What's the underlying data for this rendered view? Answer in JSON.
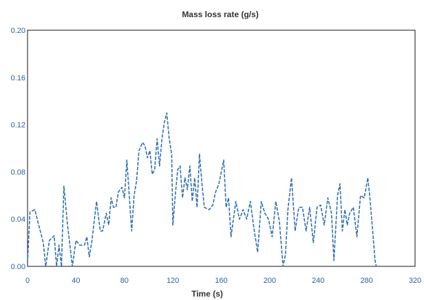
{
  "chart_data": {
    "type": "line",
    "title": "Mass loss rate (g/s)",
    "xlabel": "Time (s)",
    "ylabel": "",
    "xlim": [
      0,
      320
    ],
    "ylim": [
      0,
      0.2
    ],
    "x_ticks": [
      "0",
      "40",
      "80",
      "120",
      "160",
      "200",
      "240",
      "280",
      "320"
    ],
    "y_ticks": [
      "0.00",
      "0.04",
      "0.08",
      "0.12",
      "0.16",
      "0.20"
    ],
    "grid": false,
    "legend": "none",
    "series": [
      {
        "color": "#2e6fb0",
        "points": [
          [
            0,
            0.003
          ],
          [
            2,
            0.046
          ],
          [
            6,
            0.048
          ],
          [
            10,
            0.032
          ],
          [
            13,
            0.02
          ],
          [
            15,
            0.0
          ],
          [
            18,
            0.022
          ],
          [
            22,
            0.026
          ],
          [
            24,
            0.0
          ],
          [
            26,
            0.018
          ],
          [
            28,
            0.0
          ],
          [
            30,
            0.068
          ],
          [
            33,
            0.035
          ],
          [
            35,
            0.018
          ],
          [
            37,
            0.0
          ],
          [
            40,
            0.022
          ],
          [
            43,
            0.018
          ],
          [
            47,
            0.018
          ],
          [
            49,
            0.025
          ],
          [
            51,
            0.008
          ],
          [
            53,
            0.02
          ],
          [
            55,
            0.038
          ],
          [
            57,
            0.055
          ],
          [
            60,
            0.03
          ],
          [
            62,
            0.03
          ],
          [
            65,
            0.045
          ],
          [
            67,
            0.035
          ],
          [
            69,
            0.058
          ],
          [
            71,
            0.05
          ],
          [
            73,
            0.05
          ],
          [
            75,
            0.063
          ],
          [
            78,
            0.067
          ],
          [
            80,
            0.058
          ],
          [
            82,
            0.09
          ],
          [
            85,
            0.045
          ],
          [
            86,
            0.03
          ],
          [
            88,
            0.06
          ],
          [
            90,
            0.072
          ],
          [
            92,
            0.098
          ],
          [
            95,
            0.105
          ],
          [
            97,
            0.102
          ],
          [
            99,
            0.092
          ],
          [
            101,
            0.098
          ],
          [
            103,
            0.078
          ],
          [
            105,
            0.082
          ],
          [
            107,
            0.108
          ],
          [
            109,
            0.085
          ],
          [
            111,
            0.108
          ],
          [
            113,
            0.122
          ],
          [
            115,
            0.13
          ],
          [
            117,
            0.108
          ],
          [
            119,
            0.095
          ],
          [
            120,
            0.035
          ],
          [
            122,
            0.06
          ],
          [
            124,
            0.082
          ],
          [
            126,
            0.085
          ],
          [
            128,
            0.058
          ],
          [
            130,
            0.075
          ],
          [
            132,
            0.065
          ],
          [
            134,
            0.085
          ],
          [
            136,
            0.055
          ],
          [
            138,
            0.075
          ],
          [
            140,
            0.05
          ],
          [
            142,
            0.095
          ],
          [
            144,
            0.07
          ],
          [
            146,
            0.05
          ],
          [
            150,
            0.048
          ],
          [
            153,
            0.052
          ],
          [
            155,
            0.062
          ],
          [
            158,
            0.07
          ],
          [
            162,
            0.09
          ],
          [
            164,
            0.05
          ],
          [
            166,
            0.058
          ],
          [
            168,
            0.025
          ],
          [
            170,
            0.04
          ],
          [
            172,
            0.055
          ],
          [
            175,
            0.04
          ],
          [
            178,
            0.048
          ],
          [
            181,
            0.04
          ],
          [
            184,
            0.055
          ],
          [
            187,
            0.032
          ],
          [
            190,
            0.012
          ],
          [
            193,
            0.055
          ],
          [
            196,
            0.045
          ],
          [
            199,
            0.04
          ],
          [
            202,
            0.025
          ],
          [
            205,
            0.055
          ],
          [
            208,
            0.038
          ],
          [
            211,
            0.0
          ],
          [
            213,
            0.01
          ],
          [
            215,
            0.048
          ],
          [
            218,
            0.075
          ],
          [
            221,
            0.03
          ],
          [
            224,
            0.05
          ],
          [
            227,
            0.05
          ],
          [
            230,
            0.03
          ],
          [
            233,
            0.05
          ],
          [
            236,
            0.02
          ],
          [
            239,
            0.05
          ],
          [
            242,
            0.052
          ],
          [
            245,
            0.035
          ],
          [
            248,
            0.058
          ],
          [
            251,
            0.045
          ],
          [
            253,
            0.005
          ],
          [
            256,
            0.06
          ],
          [
            258,
            0.07
          ],
          [
            260,
            0.03
          ],
          [
            262,
            0.048
          ],
          [
            264,
            0.035
          ],
          [
            266,
            0.045
          ],
          [
            269,
            0.05
          ],
          [
            272,
            0.025
          ],
          [
            275,
            0.06
          ],
          [
            278,
            0.058
          ],
          [
            281,
            0.075
          ],
          [
            283,
            0.055
          ],
          [
            285,
            0.03
          ],
          [
            287,
            0.005
          ],
          [
            288,
            0.0
          ]
        ]
      }
    ]
  }
}
